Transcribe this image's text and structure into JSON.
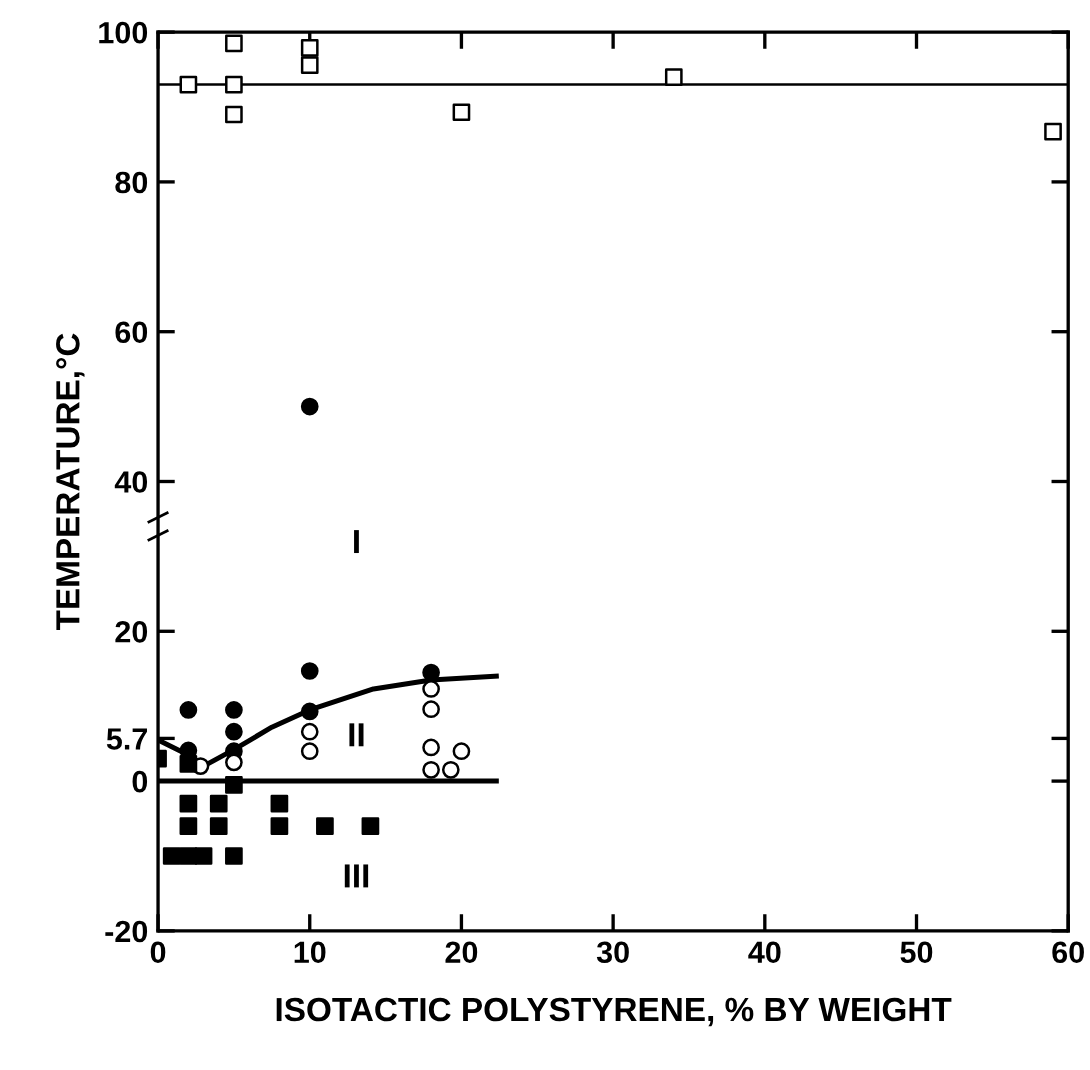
{
  "chart_data": {
    "type": "scatter",
    "xlabel": "ISOTACTIC POLYSTYRENE, % BY WEIGHT",
    "ylabel": "TEMPERATURE,°C",
    "xlim": [
      0,
      60
    ],
    "ylim": [
      -20,
      100
    ],
    "xticks": [
      0,
      10,
      20,
      30,
      40,
      50,
      60
    ],
    "yticks": [
      -20,
      0,
      {
        "value": 5.7,
        "label": "5.7"
      },
      20,
      40,
      60,
      80,
      100
    ],
    "grid": false,
    "series": [
      {
        "marker": "square",
        "color": "#ffffff",
        "x": [
          2,
          5,
          5,
          5,
          10,
          10,
          20,
          34,
          59
        ],
        "values": [
          93,
          98.5,
          93,
          89,
          97.9,
          95.6,
          89.3,
          94,
          86.7
        ]
      },
      {
        "marker": "circle",
        "color": "#000000",
        "x": [
          2,
          2,
          5,
          5,
          5,
          10,
          10,
          10,
          18
        ],
        "values": [
          9.5,
          4.1,
          9.5,
          6.6,
          4,
          14.7,
          9.3,
          50,
          14.5
        ]
      },
      {
        "marker": "circle",
        "color": "#ffffff",
        "x": [
          2.8,
          5,
          10,
          10,
          18,
          18,
          18,
          20,
          18,
          19.3
        ],
        "values": [
          2,
          2.5,
          6.6,
          4,
          12.3,
          9.6,
          4.5,
          4,
          1.5,
          1.5
        ]
      },
      {
        "marker": "square",
        "color": "#000000",
        "x": [
          0,
          2,
          2,
          4,
          8,
          5,
          2,
          4,
          8,
          11,
          14,
          0.9,
          2,
          3,
          5
        ],
        "values": [
          3,
          2.3,
          -3,
          -3,
          -3,
          -0.5,
          -6,
          -6,
          -6,
          -6,
          -6,
          -10,
          -10,
          -10,
          -10
        ]
      },
      {
        "type": "line",
        "color": "#000000",
        "x": [
          0,
          22.3
        ],
        "values": [
          0,
          0
        ]
      },
      {
        "type": "line",
        "color": "#000000",
        "x": [
          0,
          1.5,
          3,
          5,
          7.5,
          10,
          14.2,
          18,
          22.3
        ],
        "values": [
          5.5,
          4,
          2,
          4.2,
          7.2,
          9.5,
          12.3,
          13.5,
          14
        ]
      }
    ],
    "ref_lines": [
      {
        "axis": "y",
        "value": 93,
        "color": "#000000"
      }
    ],
    "annotations": [
      "I",
      "II",
      "III"
    ]
  }
}
